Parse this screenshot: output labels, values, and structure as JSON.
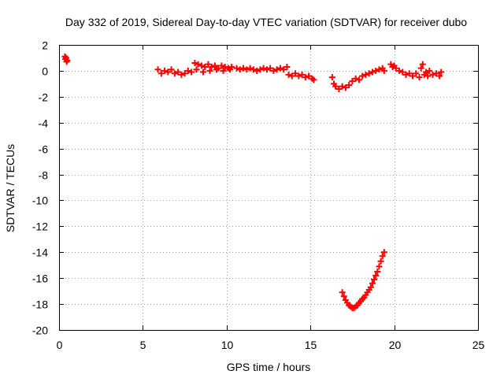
{
  "chart_data": {
    "type": "scatter",
    "title": "Day 332 of 2019, Sidereal Day-to-day VTEC variation (SDTVAR) for receiver dubo",
    "xlabel": "GPS time / hours",
    "ylabel": "SDTVAR / TECUs",
    "xlim": [
      0,
      25
    ],
    "ylim": [
      -20,
      2
    ],
    "xticks": [
      0,
      5,
      10,
      15,
      20,
      25
    ],
    "yticks": [
      2,
      0,
      -2,
      -4,
      -6,
      -8,
      -10,
      -12,
      -14,
      -16,
      -18,
      -20
    ],
    "grid": true,
    "marker": "plus",
    "color": "#ff0000",
    "series": [
      {
        "name": "SDTVAR",
        "points": [
          [
            0.35,
            1.1
          ],
          [
            0.38,
            0.9
          ],
          [
            0.42,
            1.0
          ],
          [
            0.45,
            0.7
          ],
          [
            0.48,
            0.8
          ],
          [
            5.9,
            0.1
          ],
          [
            6.1,
            -0.2
          ],
          [
            6.3,
            0.0
          ],
          [
            6.5,
            -0.1
          ],
          [
            6.7,
            0.1
          ],
          [
            6.9,
            -0.2
          ],
          [
            7.1,
            -0.1
          ],
          [
            7.3,
            -0.3
          ],
          [
            7.5,
            -0.2
          ],
          [
            7.7,
            0.0
          ],
          [
            7.9,
            -0.1
          ],
          [
            8.1,
            0.6
          ],
          [
            8.3,
            0.5
          ],
          [
            8.5,
            0.4
          ],
          [
            8.7,
            0.3
          ],
          [
            8.9,
            0.5
          ],
          [
            9.1,
            0.3
          ],
          [
            9.3,
            0.4
          ],
          [
            9.5,
            0.2
          ],
          [
            9.7,
            0.4
          ],
          [
            9.9,
            0.3
          ],
          [
            10.1,
            0.2
          ],
          [
            10.3,
            0.3
          ],
          [
            8.2,
            0.1
          ],
          [
            8.6,
            -0.1
          ],
          [
            9.0,
            0.0
          ],
          [
            9.4,
            0.1
          ],
          [
            9.8,
            0.0
          ],
          [
            10.2,
            0.1
          ],
          [
            10.6,
            0.2
          ],
          [
            10.8,
            0.1
          ],
          [
            11.0,
            0.2
          ],
          [
            11.2,
            0.1
          ],
          [
            11.4,
            0.2
          ],
          [
            11.6,
            0.1
          ],
          [
            11.8,
            0.0
          ],
          [
            12.0,
            0.1
          ],
          [
            12.2,
            0.2
          ],
          [
            12.4,
            0.1
          ],
          [
            12.6,
            0.2
          ],
          [
            12.8,
            0.0
          ],
          [
            13.0,
            0.1
          ],
          [
            13.2,
            0.2
          ],
          [
            13.4,
            0.1
          ],
          [
            13.6,
            0.3
          ],
          [
            13.7,
            -0.3
          ],
          [
            13.9,
            -0.4
          ],
          [
            14.1,
            -0.2
          ],
          [
            14.3,
            -0.4
          ],
          [
            14.5,
            -0.3
          ],
          [
            14.7,
            -0.5
          ],
          [
            14.9,
            -0.4
          ],
          [
            15.1,
            -0.6
          ],
          [
            15.2,
            -0.7
          ],
          [
            16.3,
            -0.5
          ],
          [
            16.4,
            -1.0
          ],
          [
            16.5,
            -1.2
          ],
          [
            16.7,
            -1.4
          ],
          [
            16.9,
            -1.2
          ],
          [
            17.1,
            -1.3
          ],
          [
            17.3,
            -1.1
          ],
          [
            17.5,
            -0.8
          ],
          [
            17.7,
            -0.6
          ],
          [
            17.9,
            -0.7
          ],
          [
            18.1,
            -0.4
          ],
          [
            18.3,
            -0.3
          ],
          [
            18.5,
            -0.2
          ],
          [
            18.7,
            -0.1
          ],
          [
            18.9,
            0.0
          ],
          [
            19.1,
            0.1
          ],
          [
            19.3,
            0.2
          ],
          [
            19.4,
            0.0
          ],
          [
            19.8,
            0.5
          ],
          [
            19.9,
            0.3
          ],
          [
            20.0,
            0.4
          ],
          [
            20.1,
            0.2
          ],
          [
            20.3,
            0.0
          ],
          [
            20.5,
            -0.1
          ],
          [
            20.7,
            -0.3
          ],
          [
            20.9,
            -0.2
          ],
          [
            21.1,
            -0.4
          ],
          [
            21.3,
            -0.2
          ],
          [
            21.5,
            -0.5
          ],
          [
            21.6,
            0.2
          ],
          [
            21.7,
            0.5
          ],
          [
            21.8,
            -0.3
          ],
          [
            21.9,
            -0.1
          ],
          [
            22.0,
            -0.4
          ],
          [
            22.1,
            0.0
          ],
          [
            22.3,
            -0.3
          ],
          [
            22.5,
            -0.2
          ],
          [
            22.7,
            -0.4
          ],
          [
            22.8,
            -0.1
          ],
          [
            16.9,
            -17.1
          ],
          [
            17.0,
            -17.4
          ],
          [
            17.1,
            -17.7
          ],
          [
            17.2,
            -17.9
          ],
          [
            17.3,
            -18.1
          ],
          [
            17.4,
            -18.2
          ],
          [
            17.5,
            -18.3
          ],
          [
            17.6,
            -18.3
          ],
          [
            17.7,
            -18.2
          ],
          [
            17.8,
            -18.1
          ],
          [
            17.9,
            -17.9
          ],
          [
            18.0,
            -17.8
          ],
          [
            18.1,
            -17.6
          ],
          [
            18.2,
            -17.5
          ],
          [
            18.3,
            -17.3
          ],
          [
            18.4,
            -17.1
          ],
          [
            18.5,
            -16.9
          ],
          [
            18.6,
            -16.7
          ],
          [
            18.7,
            -16.4
          ],
          [
            18.8,
            -16.1
          ],
          [
            18.9,
            -15.8
          ],
          [
            19.0,
            -15.5
          ],
          [
            19.1,
            -15.1
          ],
          [
            19.2,
            -14.7
          ],
          [
            19.3,
            -14.3
          ],
          [
            19.4,
            -14.0
          ]
        ]
      }
    ]
  }
}
